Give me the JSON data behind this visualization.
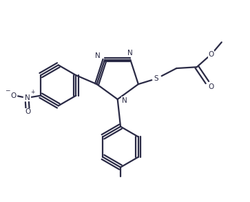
{
  "bg_color": "#ffffff",
  "line_color": "#2a2a45",
  "line_width": 1.6,
  "figsize": [
    3.63,
    2.93
  ],
  "dpi": 100,
  "xlim": [
    0,
    10
  ],
  "ylim": [
    0,
    8.1
  ]
}
